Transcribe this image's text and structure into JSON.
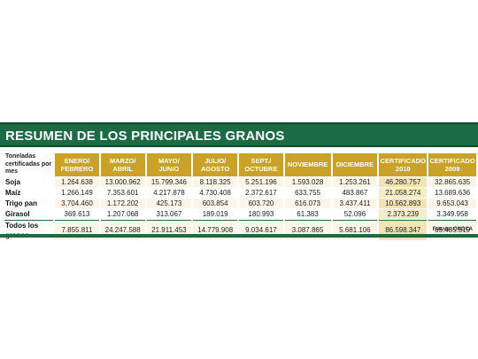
{
  "title": "RESUMEN DE LOS PRINCIPALES GRANOS",
  "row_header": "Toneladas certificadas por mes",
  "columns": [
    "ENERO/ FEBRERO",
    "MARZO/ ABRIL",
    "MAYO/ JUNIO",
    "JULIO/ AGOSTO",
    "SEPT./ OCTUBRE",
    "NOVIEMBRE",
    "DICIEMBRE",
    "CERTIFICADO 2010",
    "CERTIFICADO 2009"
  ],
  "rows": [
    {
      "label": "Soja",
      "values": [
        "1.264.638",
        "13.000.962",
        "15.799.346",
        "8.118.325",
        "5.251.196",
        "1.593.028",
        "1.253.261",
        "46.280.757",
        "32.865.635"
      ]
    },
    {
      "label": "Maíz",
      "values": [
        "1.266.149",
        "7.353.601",
        "4.217.878",
        "4.730.408",
        "2.372.617",
        "633.755",
        "483.867",
        "21.058.274",
        "13.689.636"
      ]
    },
    {
      "label": "Trigo pan",
      "values": [
        "3.704.460",
        "1.172.202",
        "425.173",
        "603.854",
        "603.720",
        "616.073",
        "3.437.411",
        "10.562.893",
        "9.653.043"
      ]
    },
    {
      "label": "Girasol",
      "values": [
        "369.613",
        "1.207.068",
        "313.067",
        "189.019",
        "180.993",
        "61.383",
        "52.096",
        "2.373.239",
        "3.349.958"
      ]
    },
    {
      "label": "Todos los granos",
      "values": [
        "7.855.811",
        "24.247.588",
        "21.911.453",
        "14.779.908",
        "9.034.617",
        "3.087.865",
        "5.681.106",
        "86.598.347",
        "65.485.519"
      ]
    }
  ],
  "source": "Fuente: ONCCA",
  "colors": {
    "title_bg": "#1d6b45",
    "header_bg": "#c9a227",
    "row_tint": "#fbf6e8"
  }
}
